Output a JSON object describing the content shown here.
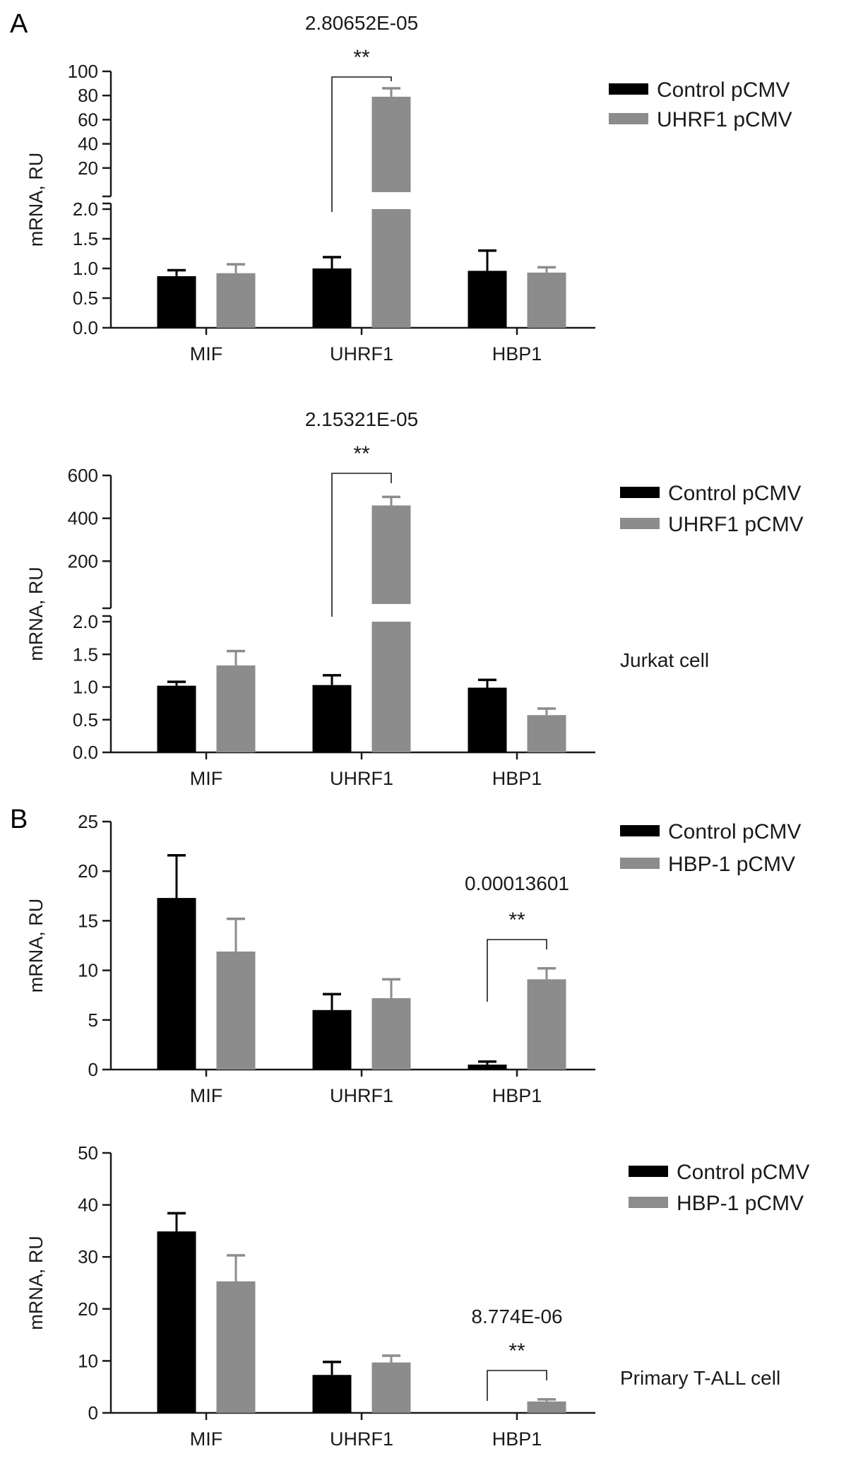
{
  "panel_labels": [
    "A",
    "B"
  ],
  "colors": {
    "control": "#000000",
    "treatment": "#8c8c8c",
    "axis": "#1a1a1a"
  },
  "chart_data": [
    {
      "type": "bar",
      "panel": "A",
      "categories": [
        "MIF",
        "UHRF1",
        "HBP1"
      ],
      "ylabel": "mRNA, RU",
      "note": "",
      "broken_axis": true,
      "lower_ylim": [
        0,
        2.0
      ],
      "lower_ticks": [
        "0.0",
        "0.5",
        "1.0",
        "1.5",
        "2.0"
      ],
      "upper_ylim": [
        0,
        100
      ],
      "upper_ticks": [
        "20",
        "40",
        "60",
        "80",
        "100"
      ],
      "series": [
        {
          "name": "Control pCMV",
          "values": [
            0.87,
            1.0,
            0.96
          ],
          "errors": [
            0.1,
            0.19,
            0.34
          ]
        },
        {
          "name": "UHRF1 pCMV",
          "values": [
            0.92,
            79,
            0.93
          ],
          "errors": [
            0.15,
            7,
            0.09
          ]
        }
      ],
      "significance": {
        "category": "UHRF1",
        "pvalue": "2.80652E-05",
        "stars": "**"
      }
    },
    {
      "type": "bar",
      "panel": "",
      "categories": [
        "MIF",
        "UHRF1",
        "HBP1"
      ],
      "ylabel": "mRNA, RU",
      "note": "Jurkat cell",
      "broken_axis": true,
      "lower_ylim": [
        0,
        2.0
      ],
      "lower_ticks": [
        "0.0",
        "0.5",
        "1.0",
        "1.5",
        "2.0"
      ],
      "upper_ylim": [
        0,
        600
      ],
      "upper_ticks": [
        "200",
        "400",
        "600"
      ],
      "series": [
        {
          "name": "Control pCMV",
          "values": [
            1.02,
            1.03,
            0.99
          ],
          "errors": [
            0.06,
            0.15,
            0.12
          ]
        },
        {
          "name": "UHRF1 pCMV",
          "values": [
            1.33,
            460,
            0.57
          ],
          "errors": [
            0.22,
            40,
            0.1
          ]
        }
      ],
      "significance": {
        "category": "UHRF1",
        "pvalue": "2.15321E-05",
        "stars": "**"
      }
    },
    {
      "type": "bar",
      "panel": "B",
      "categories": [
        "MIF",
        "UHRF1",
        "HBP1"
      ],
      "ylabel": "mRNA, RU",
      "note": "",
      "broken_axis": false,
      "ylim": [
        0,
        25
      ],
      "ticks": [
        "0",
        "5",
        "10",
        "15",
        "20",
        "25"
      ],
      "series": [
        {
          "name": "Control pCMV",
          "values": [
            17.3,
            6.0,
            0.5
          ],
          "errors": [
            4.3,
            1.6,
            0.3
          ]
        },
        {
          "name": "HBP-1 pCMV",
          "values": [
            11.9,
            7.2,
            9.1
          ],
          "errors": [
            3.3,
            1.9,
            1.1
          ]
        }
      ],
      "significance": {
        "category": "HBP1",
        "pvalue": "0.00013601",
        "stars": "**"
      }
    },
    {
      "type": "bar",
      "panel": "",
      "categories": [
        "MIF",
        "UHRF1",
        "HBP1"
      ],
      "ylabel": "mRNA, RU",
      "note": "Primary T-ALL cell",
      "broken_axis": false,
      "ylim": [
        0,
        50
      ],
      "ticks": [
        "0",
        "10",
        "20",
        "30",
        "40",
        "50"
      ],
      "series": [
        {
          "name": "Control pCMV",
          "values": [
            34.9,
            7.3,
            0.0
          ],
          "errors": [
            3.5,
            2.5,
            0.0
          ]
        },
        {
          "name": "HBP-1 pCMV",
          "values": [
            25.3,
            9.7,
            2.2
          ],
          "errors": [
            5.0,
            1.3,
            0.4
          ]
        }
      ],
      "significance": {
        "category": "HBP1",
        "pvalue": "8.774E-06",
        "stars": "**"
      }
    }
  ]
}
